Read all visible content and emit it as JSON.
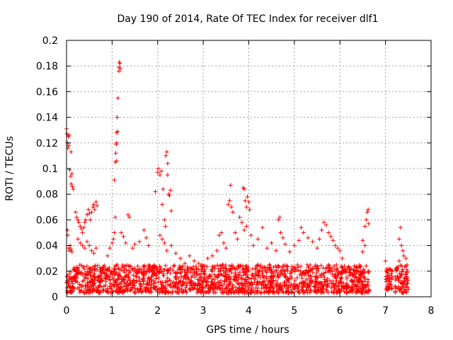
{
  "chart_data": {
    "type": "scatter",
    "title": "Day 190 of 2014, Rate Of TEC Index for receiver dlf1",
    "xlabel": "GPS time / hours",
    "ylabel": "ROTI / TECUs",
    "xlim": [
      0,
      8
    ],
    "ylim": [
      0,
      0.2
    ],
    "xticks": [
      0,
      1,
      2,
      3,
      4,
      5,
      6,
      7,
      8
    ],
    "yticks": [
      0,
      0.02,
      0.04,
      0.06,
      0.08,
      0.1,
      0.12,
      0.14,
      0.16,
      0.18,
      0.2
    ],
    "xtick_labels": [
      "0",
      "1",
      "2",
      "3",
      "4",
      "5",
      "6",
      "7",
      "8"
    ],
    "ytick_labels": [
      "0",
      "0.02",
      "0.04",
      "0.06",
      "0.08",
      "0.1",
      "0.12",
      "0.14",
      "0.16",
      "0.18",
      "0.2"
    ],
    "grid": true,
    "marker": "+",
    "color": "#ff0000",
    "series": [
      {
        "name": "dlf1",
        "points": [
          [
            0.0,
            0.131
          ],
          [
            0.01,
            0.127
          ],
          [
            0.02,
            0.12
          ],
          [
            0.03,
            0.116
          ],
          [
            0.04,
            0.125
          ],
          [
            0.05,
            0.118
          ],
          [
            0.06,
            0.126
          ],
          [
            0.1,
            0.113
          ],
          [
            0.07,
            0.099
          ],
          [
            0.09,
            0.094
          ],
          [
            0.12,
            0.096
          ],
          [
            0.13,
            0.086
          ],
          [
            0.15,
            0.084
          ],
          [
            0.1,
            0.088
          ],
          [
            0.02,
            0.052
          ],
          [
            0.03,
            0.048
          ],
          [
            0.05,
            0.038
          ],
          [
            0.06,
            0.036
          ],
          [
            0.08,
            0.04
          ],
          [
            0.1,
            0.037
          ],
          [
            0.12,
            0.035
          ],
          [
            0.2,
            0.066
          ],
          [
            0.22,
            0.062
          ],
          [
            0.25,
            0.06
          ],
          [
            0.27,
            0.058
          ],
          [
            0.3,
            0.055
          ],
          [
            0.33,
            0.053
          ],
          [
            0.35,
            0.05
          ],
          [
            0.38,
            0.054
          ],
          [
            0.4,
            0.058
          ],
          [
            0.42,
            0.06
          ],
          [
            0.45,
            0.064
          ],
          [
            0.48,
            0.068
          ],
          [
            0.5,
            0.065
          ],
          [
            0.52,
            0.06
          ],
          [
            0.55,
            0.066
          ],
          [
            0.58,
            0.07
          ],
          [
            0.6,
            0.072
          ],
          [
            0.62,
            0.068
          ],
          [
            0.65,
            0.074
          ],
          [
            0.67,
            0.071
          ],
          [
            0.25,
            0.045
          ],
          [
            0.3,
            0.042
          ],
          [
            0.35,
            0.04
          ],
          [
            0.4,
            0.038
          ],
          [
            0.45,
            0.043
          ],
          [
            0.5,
            0.04
          ],
          [
            0.55,
            0.036
          ],
          [
            0.6,
            0.034
          ],
          [
            0.65,
            0.038
          ],
          [
            0.9,
            0.032
          ],
          [
            0.95,
            0.038
          ],
          [
            1.0,
            0.042
          ],
          [
            1.03,
            0.045
          ],
          [
            1.05,
            0.05
          ],
          [
            1.07,
            0.062
          ],
          [
            1.05,
            0.091
          ],
          [
            1.07,
            0.105
          ],
          [
            1.08,
            0.112
          ],
          [
            1.09,
            0.119
          ],
          [
            1.1,
            0.128
          ],
          [
            1.1,
            0.106
          ],
          [
            1.1,
            0.12
          ],
          [
            1.11,
            0.14
          ],
          [
            1.12,
            0.129
          ],
          [
            1.13,
            0.155
          ],
          [
            1.15,
            0.179
          ],
          [
            1.16,
            0.183
          ],
          [
            1.17,
            0.182
          ],
          [
            1.18,
            0.178
          ],
          [
            1.15,
            0.176
          ],
          [
            1.2,
            0.05
          ],
          [
            1.25,
            0.047
          ],
          [
            1.3,
            0.042
          ],
          [
            1.35,
            0.064
          ],
          [
            1.38,
            0.062
          ],
          [
            1.45,
            0.038
          ],
          [
            1.5,
            0.041
          ],
          [
            1.6,
            0.043
          ],
          [
            1.7,
            0.052
          ],
          [
            1.75,
            0.046
          ],
          [
            1.8,
            0.04
          ],
          [
            1.95,
            0.082
          ],
          [
            2.0,
            0.097
          ],
          [
            2.02,
            0.1
          ],
          [
            2.05,
            0.095
          ],
          [
            2.08,
            0.098
          ],
          [
            2.1,
            0.072
          ],
          [
            2.12,
            0.084
          ],
          [
            2.15,
            0.06
          ],
          [
            2.17,
            0.055
          ],
          [
            2.18,
            0.11
          ],
          [
            2.2,
            0.113
          ],
          [
            2.22,
            0.104
          ],
          [
            2.22,
            0.095
          ],
          [
            2.24,
            0.08
          ],
          [
            2.26,
            0.079
          ],
          [
            2.28,
            0.083
          ],
          [
            2.3,
            0.067
          ],
          [
            2.05,
            0.048
          ],
          [
            2.1,
            0.045
          ],
          [
            2.15,
            0.042
          ],
          [
            2.2,
            0.036
          ],
          [
            2.3,
            0.04
          ],
          [
            2.4,
            0.034
          ],
          [
            2.5,
            0.03
          ],
          [
            2.6,
            0.026
          ],
          [
            2.7,
            0.032
          ],
          [
            2.8,
            0.028
          ],
          [
            2.9,
            0.026
          ],
          [
            3.1,
            0.03
          ],
          [
            3.2,
            0.032
          ],
          [
            3.3,
            0.036
          ],
          [
            3.35,
            0.048
          ],
          [
            3.4,
            0.05
          ],
          [
            3.45,
            0.042
          ],
          [
            3.5,
            0.038
          ],
          [
            3.55,
            0.072
          ],
          [
            3.58,
            0.075
          ],
          [
            3.6,
            0.087
          ],
          [
            3.62,
            0.07
          ],
          [
            3.65,
            0.066
          ],
          [
            3.7,
            0.05
          ],
          [
            3.75,
            0.045
          ],
          [
            3.8,
            0.062
          ],
          [
            3.85,
            0.058
          ],
          [
            3.88,
            0.085
          ],
          [
            3.9,
            0.084
          ],
          [
            3.92,
            0.075
          ],
          [
            3.95,
            0.07
          ],
          [
            3.97,
            0.078
          ],
          [
            4.0,
            0.074
          ],
          [
            4.02,
            0.068
          ],
          [
            3.9,
            0.052
          ],
          [
            3.95,
            0.055
          ],
          [
            4.05,
            0.048
          ],
          [
            4.1,
            0.04
          ],
          [
            4.2,
            0.045
          ],
          [
            4.3,
            0.054
          ],
          [
            4.4,
            0.038
          ],
          [
            4.5,
            0.042
          ],
          [
            4.6,
            0.036
          ],
          [
            4.65,
            0.06
          ],
          [
            4.68,
            0.062
          ],
          [
            4.7,
            0.05
          ],
          [
            4.75,
            0.046
          ],
          [
            4.8,
            0.041
          ],
          [
            4.9,
            0.035
          ],
          [
            5.0,
            0.04
          ],
          [
            5.1,
            0.044
          ],
          [
            5.15,
            0.054
          ],
          [
            5.2,
            0.05
          ],
          [
            5.3,
            0.046
          ],
          [
            5.4,
            0.043
          ],
          [
            5.5,
            0.038
          ],
          [
            5.55,
            0.045
          ],
          [
            5.6,
            0.052
          ],
          [
            5.65,
            0.058
          ],
          [
            5.7,
            0.056
          ],
          [
            5.75,
            0.05
          ],
          [
            5.8,
            0.047
          ],
          [
            5.85,
            0.044
          ],
          [
            5.9,
            0.04
          ],
          [
            5.95,
            0.038
          ],
          [
            6.0,
            0.036
          ],
          [
            6.05,
            0.03
          ],
          [
            6.5,
            0.044
          ],
          [
            6.55,
            0.055
          ],
          [
            6.58,
            0.06
          ],
          [
            6.6,
            0.066
          ],
          [
            6.62,
            0.068
          ],
          [
            6.63,
            0.057
          ],
          [
            6.55,
            0.04
          ],
          [
            6.5,
            0.035
          ],
          [
            7.0,
            0.028
          ],
          [
            7.02,
            0.02
          ],
          [
            7.05,
            0.015
          ],
          [
            7.1,
            0.012
          ],
          [
            7.15,
            0.02
          ],
          [
            7.3,
            0.045
          ],
          [
            7.33,
            0.054
          ],
          [
            7.35,
            0.04
          ],
          [
            7.38,
            0.036
          ],
          [
            7.4,
            0.032
          ],
          [
            7.45,
            0.03
          ],
          [
            7.3,
            0.028
          ],
          [
            7.25,
            0.022
          ]
        ],
        "dense_band": {
          "description": "dense continuous band of points near baseline",
          "segments": [
            {
              "x_from": 0.0,
              "x_to": 6.65,
              "y_low": 0.003,
              "y_high": 0.025
            },
            {
              "x_from": 7.0,
              "x_to": 7.15,
              "y_low": 0.005,
              "y_high": 0.022
            },
            {
              "x_from": 7.2,
              "x_to": 7.5,
              "y_low": 0.003,
              "y_high": 0.025
            }
          ],
          "points_per_hour": 260
        }
      }
    ]
  }
}
